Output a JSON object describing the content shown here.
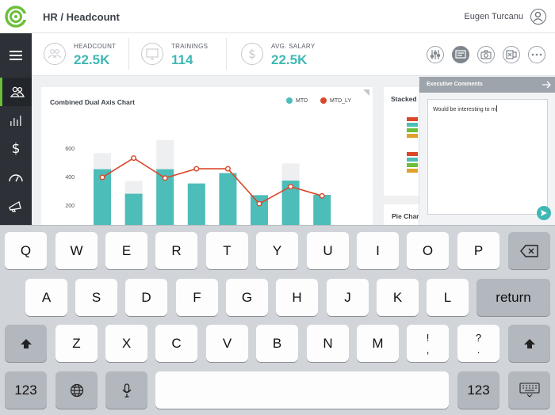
{
  "header": {
    "title": "HR / Headcount",
    "user_name": "Eugen Turcanu"
  },
  "sidebar": {
    "items": [
      "people-icon",
      "bar-chart-icon",
      "dollar-icon",
      "speedometer-icon",
      "megaphone-icon"
    ]
  },
  "kpis": [
    {
      "label": "HEADCOUNT",
      "value": "22.5K",
      "icon": "people-icon"
    },
    {
      "label": "TRAININGS",
      "value": "114",
      "icon": "monitor-icon"
    },
    {
      "label": "AVG. SALARY",
      "value": "22.5K",
      "icon": "dollar-icon"
    }
  ],
  "toolbar": {
    "buttons": [
      "sliders-icon",
      "comment-icon",
      "camera-icon",
      "excel-icon",
      "more-icon"
    ]
  },
  "chart_card": {
    "title": "Combined Dual Axis Chart"
  },
  "chart_data": {
    "type": "bar",
    "title": "Combined Dual Axis Chart",
    "legend_position": "top-right",
    "y_ticks": [
      "600",
      "400",
      "200"
    ],
    "ylim": [
      0,
      700
    ],
    "series": [
      {
        "name": "MTD",
        "kind": "bar",
        "color": "#4dbdb9",
        "values": [
          452,
          280,
          452,
          352,
          425,
          270,
          372,
          272
        ]
      },
      {
        "name": "MTD_LY",
        "kind": "line",
        "color": "#d9472b",
        "values": [
          395,
          530,
          390,
          455,
          455,
          210,
          330,
          265
        ]
      },
      {
        "name": "",
        "kind": "background-bar",
        "color": "#eeeff1",
        "values": [
          565,
          370,
          655,
          352,
          425,
          270,
          492,
          272
        ]
      }
    ]
  },
  "stacked_card": {
    "title": "Stacked",
    "colors": [
      "#d9472b",
      "#4dbdb9",
      "#6cbf3a",
      "#e0a12e"
    ]
  },
  "pie_card": {
    "title": "Pie Chart"
  },
  "comments": {
    "title": "Executive Comments",
    "text": "Would be interesting to m"
  },
  "keyboard": {
    "row1": [
      "Q",
      "W",
      "E",
      "R",
      "T",
      "Y",
      "U",
      "I",
      "O",
      "P"
    ],
    "row2": [
      "A",
      "S",
      "D",
      "F",
      "G",
      "H",
      "J",
      "K",
      "L"
    ],
    "row2_return": "return",
    "row3": [
      "Z",
      "X",
      "C",
      "V",
      "B",
      "N",
      "M"
    ],
    "row3_punct": [
      {
        "top": "!",
        "bottom": ","
      },
      {
        "top": "?",
        "bottom": "."
      }
    ],
    "numbers_label": "123"
  }
}
